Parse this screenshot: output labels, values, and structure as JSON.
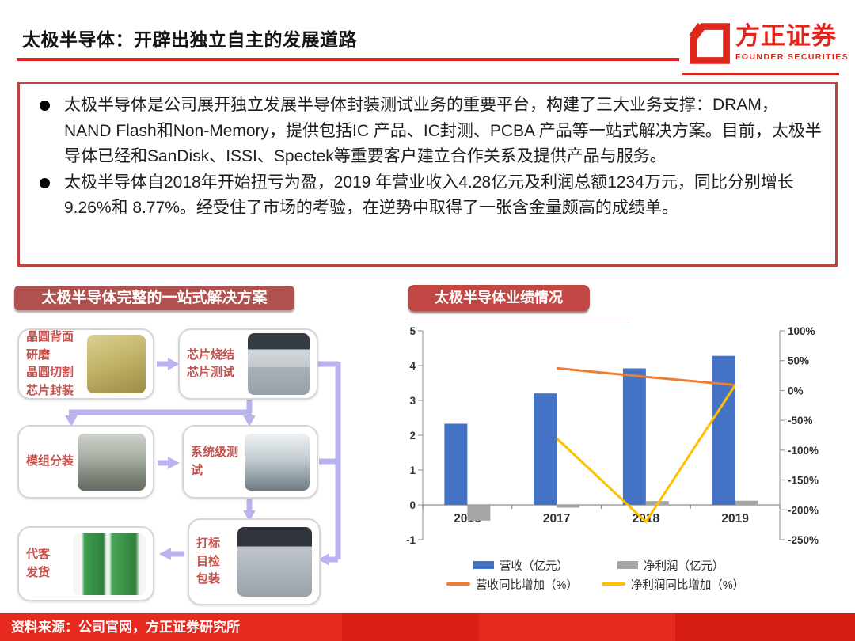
{
  "header": {
    "title": "太极半导体：开辟出独立自主的发展道路",
    "logo": {
      "name_cn": "方正证券",
      "name_en": "FOUNDER SECURITIES"
    }
  },
  "summary": {
    "bullets": [
      "太极半导体是公司展开独立发展半导体封装测试业务的重要平台，构建了三大业务支撑：DRAM，NAND Flash和Non-Memory，提供包括IC 产品、IC封测、PCBA 产品等一站式解决方案。目前，太极半导体已经和SanDisk、ISSI、Spectek等重要客户建立合作关系及提供产品与服务。",
      "太极半导体自2018年开始扭亏为盈，2019 年营业收入4.28亿元及利润总额1234万元，同比分别增长9.26%和 8.77%。经受住了市场的考验，在逆势中取得了一张含金量颇高的成绩单。"
    ]
  },
  "solution": {
    "badge": "太极半导体完整的一站式解决方案",
    "steps": [
      {
        "label": "晶圆背面\n研磨\n晶圆切割\n芯片封装",
        "photo": "yellow-cleanroom"
      },
      {
        "label": "芯片烧结\n芯片测试",
        "photo": "test-equipment"
      },
      {
        "label": "模组分装",
        "photo": "assembly-line"
      },
      {
        "label": "系统级测\n试",
        "photo": "cleanroom-aisle"
      },
      {
        "label": "代客\n发货",
        "photo": "green-trucks"
      },
      {
        "label": "打标\n目检\n包装",
        "photo": "packaging-machine"
      }
    ]
  },
  "performance": {
    "badge": "太极半导体业绩情况"
  },
  "chart_data": {
    "type": "combo",
    "categories": [
      "2016",
      "2017",
      "2018",
      "2019"
    ],
    "series": [
      {
        "name": "营收（亿元）",
        "type": "bar",
        "axis": "left",
        "color": "#4472c4",
        "values": [
          2.33,
          3.2,
          3.92,
          4.28
        ]
      },
      {
        "name": "净利润（亿元）",
        "type": "bar",
        "axis": "left",
        "color": "#a6a6a6",
        "values": [
          -0.45,
          -0.08,
          0.11,
          0.12
        ]
      },
      {
        "name": "营收同比增加（%）",
        "type": "line",
        "axis": "right",
        "color": "#ed7d31",
        "values": [
          null,
          37.3,
          22.8,
          9.26
        ]
      },
      {
        "name": "净利润同比增加（%）",
        "type": "line",
        "axis": "right",
        "color": "#ffc000",
        "values": [
          null,
          -80,
          -220,
          8.77
        ]
      }
    ],
    "left_axis": {
      "min": -1,
      "max": 5,
      "step": 1
    },
    "right_axis": {
      "min": -250,
      "max": 100,
      "step": 50,
      "suffix": "%"
    },
    "legend_position": "bottom",
    "grid": false
  },
  "footer": {
    "source": "资料来源：公司官网，方正证券研究所"
  },
  "colors": {
    "brand_red": "#e0251c",
    "summary_border": "#bc4340",
    "badge_left": "#b0514f",
    "badge_right": "#c04744",
    "flow_text": "#c4524e",
    "connector": "#b9b3f0"
  }
}
